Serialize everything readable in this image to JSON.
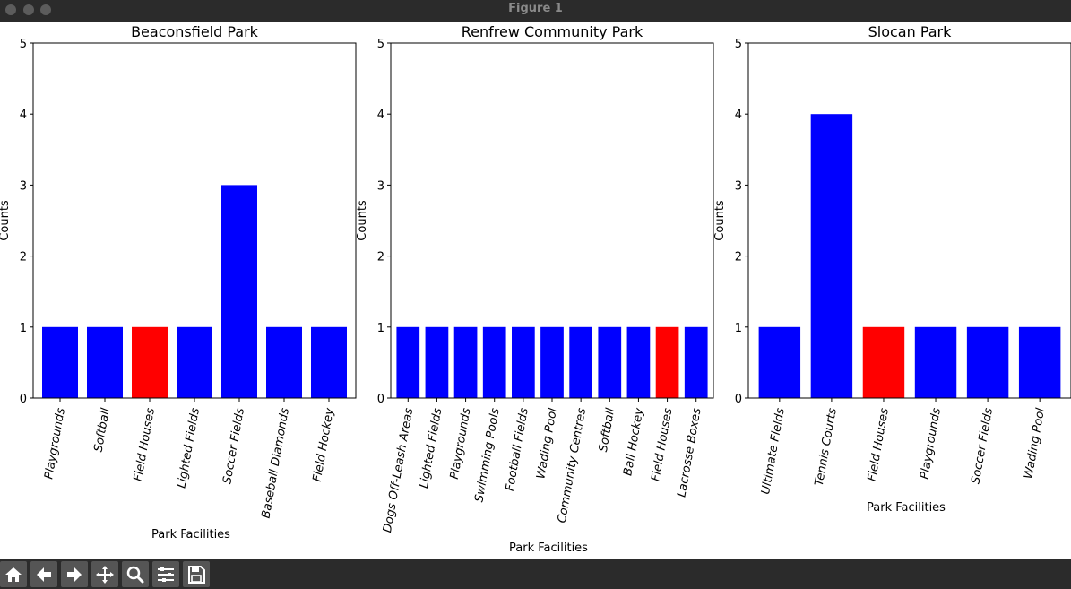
{
  "window": {
    "title": "Figure 1"
  },
  "toolbar": {
    "buttons": [
      {
        "icon": "home-icon"
      },
      {
        "icon": "back-arrow-icon"
      },
      {
        "icon": "forward-arrow-icon"
      },
      {
        "icon": "pan-move-icon"
      },
      {
        "icon": "zoom-magnifier-icon"
      },
      {
        "icon": "configure-subplots-icon"
      },
      {
        "icon": "save-floppy-icon"
      }
    ]
  },
  "colors": {
    "default_bar": "#0000ff",
    "highlight_bar": "#ff0000"
  },
  "chart_data": [
    {
      "type": "bar",
      "title": "Beaconsfield Park",
      "xlabel": "Park Facilities",
      "ylabel": "Counts",
      "ylim": [
        0,
        5
      ],
      "yticks": [
        "0",
        "1",
        "2",
        "3",
        "4",
        "5"
      ],
      "categories": [
        "Playgrounds",
        "Softball",
        "Field Houses",
        "Lighted Fields",
        "Soccer Fields",
        "Baseball Diamonds",
        "Field Hockey"
      ],
      "values": [
        1,
        1,
        1,
        1,
        3,
        1,
        1
      ],
      "colors": [
        "#0000ff",
        "#0000ff",
        "#ff0000",
        "#0000ff",
        "#0000ff",
        "#0000ff",
        "#0000ff"
      ]
    },
    {
      "type": "bar",
      "title": "Renfrew Community Park",
      "xlabel": "Park Facilities",
      "ylabel": "Counts",
      "ylim": [
        0,
        5
      ],
      "yticks": [
        "0",
        "1",
        "2",
        "3",
        "4",
        "5"
      ],
      "categories": [
        "Dogs Off-Leash Areas",
        "Lighted Fields",
        "Playgrounds",
        "Swimming Pools",
        "Football Fields",
        "Wading Pool",
        "Community Centres",
        "Softball",
        "Ball Hockey",
        "Field Houses",
        "Lacrosse Boxes"
      ],
      "values": [
        1,
        1,
        1,
        1,
        1,
        1,
        1,
        1,
        1,
        1,
        1
      ],
      "colors": [
        "#0000ff",
        "#0000ff",
        "#0000ff",
        "#0000ff",
        "#0000ff",
        "#0000ff",
        "#0000ff",
        "#0000ff",
        "#0000ff",
        "#ff0000",
        "#0000ff"
      ]
    },
    {
      "type": "bar",
      "title": "Slocan Park",
      "xlabel": "Park Facilities",
      "ylabel": "Counts",
      "ylim": [
        0,
        5
      ],
      "yticks": [
        "0",
        "1",
        "2",
        "3",
        "4",
        "5"
      ],
      "categories": [
        "Ultimate Fields",
        "Tennis Courts",
        "Field Houses",
        "Playgrounds",
        "Soccer Fields",
        "Wading Pool"
      ],
      "values": [
        1,
        4,
        1,
        1,
        1,
        1
      ],
      "colors": [
        "#0000ff",
        "#0000ff",
        "#ff0000",
        "#0000ff",
        "#0000ff",
        "#0000ff"
      ]
    }
  ]
}
